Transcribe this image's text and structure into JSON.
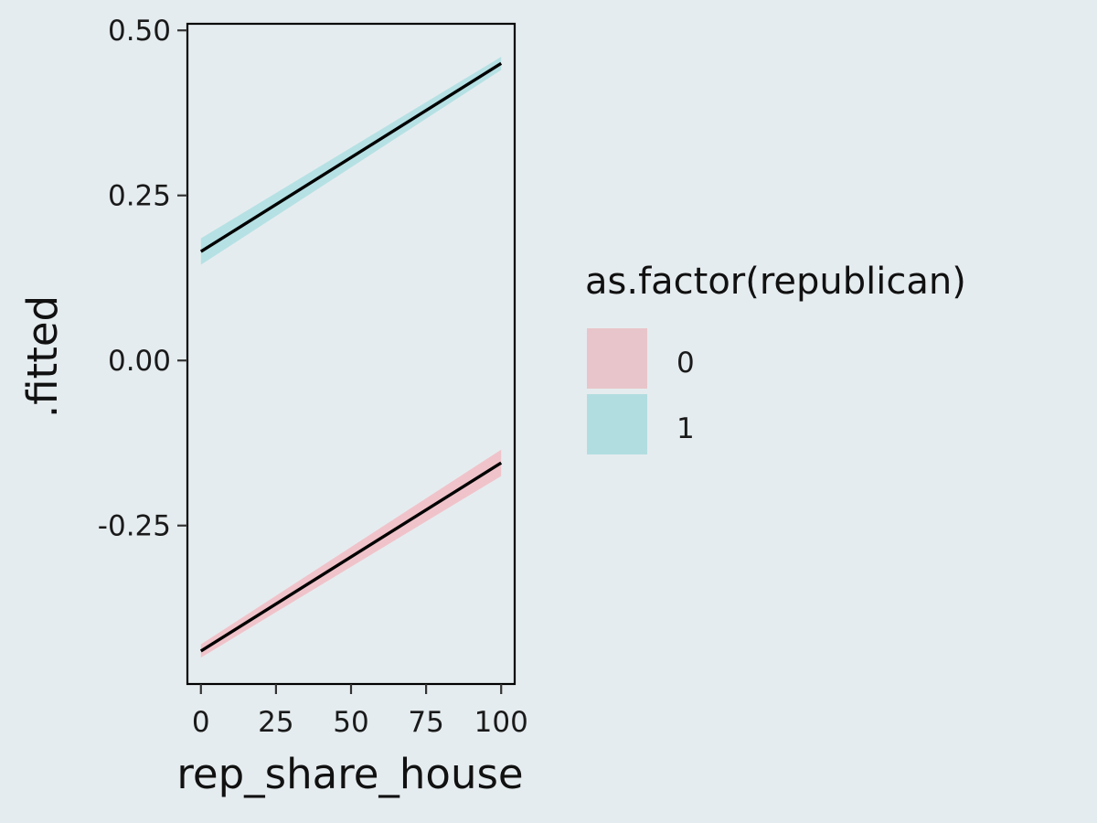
{
  "chart_data": {
    "type": "line",
    "xlabel": "rep_share_house",
    "ylabel": ".fitted",
    "xlim": [
      -4.5,
      104.5
    ],
    "ylim": [
      -0.49,
      0.51
    ],
    "x_ticks": [
      0,
      25,
      50,
      75,
      100
    ],
    "x_tick_labels": [
      "0",
      "25",
      "50",
      "75",
      "100"
    ],
    "y_ticks": [
      0.5,
      0.25,
      0.0,
      -0.25
    ],
    "y_tick_labels": [
      "0.50",
      "0.25",
      "0.00",
      "-0.25"
    ],
    "grid": false,
    "legend": {
      "title": "as.factor(republican)",
      "position": "right",
      "entries": [
        {
          "label": "0",
          "color": "#e8c5ca"
        },
        {
          "label": "1",
          "color": "#b2dde0"
        }
      ]
    },
    "series": [
      {
        "key": "0",
        "line_color": "#000000",
        "ribbon_color": "#f3b5bd",
        "x": [
          0,
          100
        ],
        "y": [
          -0.44,
          -0.155
        ],
        "lower": [
          -0.45,
          -0.175
        ],
        "upper": [
          -0.43,
          -0.135
        ]
      },
      {
        "key": "1",
        "line_color": "#000000",
        "ribbon_color": "#a6dde0",
        "x": [
          0,
          100
        ],
        "y": [
          0.165,
          0.45
        ],
        "lower": [
          0.145,
          0.44
        ],
        "upper": [
          0.185,
          0.46
        ]
      }
    ]
  }
}
